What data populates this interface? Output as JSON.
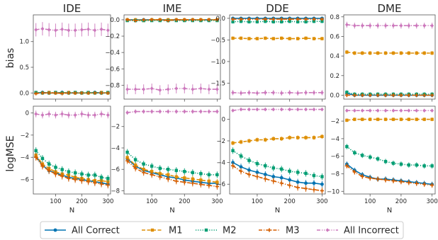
{
  "figure": {
    "row_labels": [
      "bias",
      "logMSE"
    ],
    "xlabel": "N"
  },
  "legend": [
    {
      "name": "All Correct",
      "color": "#0173b2",
      "marker": "circle",
      "dash": "solid"
    },
    {
      "name": "M1",
      "color": "#de8f05",
      "marker": "square",
      "dash": "dashed"
    },
    {
      "name": "M2",
      "color": "#029e73",
      "marker": "square",
      "dash": "dotted"
    },
    {
      "name": "M3",
      "color": "#d55e00",
      "marker": "plus",
      "dash": "dashdot"
    },
    {
      "name": "All Incorrect",
      "color": "#cc78bc",
      "marker": "diamond",
      "dash": "dashdotdot"
    }
  ],
  "chart_data": [
    {
      "type": "line",
      "title": "IDE",
      "row": 0,
      "col": 0,
      "xlabel": "",
      "ylabel": "bias",
      "x": [
        25,
        50,
        75,
        100,
        125,
        150,
        175,
        200,
        225,
        250,
        275,
        300
      ],
      "xlim": [
        15,
        310
      ],
      "ylim": [
        -0.12,
        1.52
      ],
      "yticks": [
        0.0,
        0.5,
        1.0
      ],
      "ytick_labels": [
        "0.0",
        "0.5",
        "1.0"
      ],
      "xticks": [
        100,
        200,
        300
      ],
      "show_xtick_labels": false,
      "series": [
        {
          "name": "All Correct",
          "values": [
            0.0,
            0.01,
            0.0,
            0.0,
            0.01,
            0.0,
            0.0,
            0.0,
            0.0,
            0.01,
            0.0,
            0.0
          ],
          "err": 0.03
        },
        {
          "name": "M1",
          "values": [
            0.0,
            0.0,
            0.01,
            0.0,
            0.0,
            0.01,
            0.0,
            0.0,
            0.0,
            0.0,
            0.01,
            0.0
          ],
          "err": 0.03
        },
        {
          "name": "M2",
          "values": [
            0.01,
            0.0,
            0.0,
            0.01,
            0.0,
            0.0,
            0.01,
            0.0,
            0.01,
            0.0,
            0.0,
            0.01
          ],
          "err": 0.03
        },
        {
          "name": "M3",
          "values": [
            -0.01,
            0.0,
            0.0,
            0.0,
            -0.01,
            0.0,
            0.0,
            0.0,
            0.0,
            0.0,
            0.0,
            0.0
          ],
          "err": 0.03
        },
        {
          "name": "All Incorrect",
          "values": [
            1.23,
            1.25,
            1.23,
            1.22,
            1.24,
            1.22,
            1.22,
            1.23,
            1.24,
            1.22,
            1.24,
            1.22
          ],
          "err": 0.13
        }
      ]
    },
    {
      "type": "line",
      "title": "IME",
      "row": 0,
      "col": 1,
      "xlabel": "",
      "ylabel": "",
      "x": [
        25,
        50,
        75,
        100,
        125,
        150,
        175,
        200,
        225,
        250,
        275,
        300
      ],
      "xlim": [
        15,
        310
      ],
      "ylim": [
        -0.97,
        0.06
      ],
      "yticks": [
        0.0,
        -0.2,
        -0.4,
        -0.6,
        -0.8
      ],
      "ytick_labels": [
        "0.0",
        "−0.2",
        "−0.4",
        "−0.6",
        "−0.8"
      ],
      "xticks": [
        100,
        200,
        300
      ],
      "show_xtick_labels": false,
      "series": [
        {
          "name": "All Correct",
          "values": [
            0.0,
            0.0,
            0.0,
            0.0,
            0.0,
            0.0,
            0.0,
            0.0,
            0.0,
            0.0,
            0.0,
            0.0
          ],
          "err": 0.01
        },
        {
          "name": "M1",
          "values": [
            0.0,
            0.0,
            -0.01,
            0.0,
            0.0,
            0.0,
            0.0,
            0.0,
            0.0,
            0.0,
            0.0,
            0.0
          ],
          "err": 0.01
        },
        {
          "name": "M2",
          "values": [
            -0.01,
            -0.01,
            -0.01,
            -0.01,
            -0.01,
            -0.01,
            -0.01,
            -0.01,
            -0.01,
            -0.01,
            -0.01,
            -0.01
          ],
          "err": 0.01
        },
        {
          "name": "M3",
          "values": [
            0.0,
            -0.01,
            0.0,
            0.0,
            0.0,
            -0.01,
            0.0,
            0.0,
            0.0,
            0.0,
            0.0,
            0.0
          ],
          "err": 0.01
        },
        {
          "name": "All Incorrect",
          "values": [
            -0.85,
            -0.85,
            -0.85,
            -0.84,
            -0.86,
            -0.85,
            -0.84,
            -0.84,
            -0.85,
            -0.84,
            -0.85,
            -0.85
          ],
          "err": 0.06
        }
      ]
    },
    {
      "type": "line",
      "title": "DDE",
      "row": 0,
      "col": 2,
      "xlabel": "",
      "ylabel": "",
      "x": [
        25,
        50,
        75,
        100,
        125,
        150,
        175,
        200,
        225,
        250,
        275,
        300
      ],
      "xlim": [
        15,
        310
      ],
      "ylim": [
        -1.87,
        0.08
      ],
      "yticks": [
        0.0,
        -0.5,
        -1.0,
        -1.5
      ],
      "ytick_labels": [
        "0.0",
        "−0.5",
        "−1.0",
        "−1.5"
      ],
      "xticks": [
        100,
        200,
        300
      ],
      "show_xtick_labels": false,
      "series": [
        {
          "name": "All Correct",
          "values": [
            0.0,
            0.0,
            0.0,
            0.0,
            0.0,
            0.0,
            0.0,
            0.0,
            0.0,
            0.0,
            0.0,
            0.0
          ],
          "err": 0.03
        },
        {
          "name": "M1",
          "values": [
            -0.46,
            -0.46,
            -0.47,
            -0.47,
            -0.46,
            -0.47,
            -0.46,
            -0.47,
            -0.47,
            -0.46,
            -0.47,
            -0.47
          ],
          "err": 0.04
        },
        {
          "name": "M2",
          "values": [
            -0.08,
            -0.07,
            -0.08,
            -0.08,
            -0.07,
            -0.08,
            -0.08,
            -0.07,
            -0.08,
            -0.08,
            -0.07,
            -0.07
          ],
          "err": 0.04
        },
        {
          "name": "M3",
          "values": [
            -0.02,
            -0.02,
            -0.02,
            -0.02,
            -0.02,
            -0.02,
            -0.02,
            -0.02,
            -0.02,
            -0.02,
            -0.02,
            -0.02
          ],
          "err": 0.03
        },
        {
          "name": "All Incorrect",
          "values": [
            -1.72,
            -1.73,
            -1.72,
            -1.73,
            -1.72,
            -1.72,
            -1.73,
            -1.72,
            -1.73,
            -1.72,
            -1.72,
            -1.72
          ],
          "err": 0.06
        }
      ]
    },
    {
      "type": "line",
      "title": "DME",
      "row": 0,
      "col": 3,
      "xlabel": "",
      "ylabel": "",
      "x": [
        25,
        50,
        75,
        100,
        125,
        150,
        175,
        200,
        225,
        250,
        275,
        300
      ],
      "xlim": [
        15,
        310
      ],
      "ylim": [
        -0.04,
        0.82
      ],
      "yticks": [
        0.0,
        0.2,
        0.4,
        0.6,
        0.8
      ],
      "ytick_labels": [
        "0.0",
        "0.2",
        "0.4",
        "0.6",
        "0.8"
      ],
      "xticks": [
        100,
        200,
        300
      ],
      "show_xtick_labels": false,
      "series": [
        {
          "name": "All Correct",
          "values": [
            0.02,
            0.0,
            0.0,
            0.0,
            0.0,
            0.0,
            0.0,
            0.0,
            0.0,
            0.0,
            0.0,
            0.0
          ],
          "err": 0.02
        },
        {
          "name": "M1",
          "values": [
            0.44,
            0.43,
            0.43,
            0.43,
            0.43,
            0.43,
            0.43,
            0.43,
            0.43,
            0.43,
            0.43,
            0.43
          ],
          "err": 0.02
        },
        {
          "name": "M2",
          "values": [
            0.03,
            0.01,
            0.01,
            0.01,
            0.01,
            0.01,
            0.01,
            0.01,
            0.01,
            0.01,
            0.01,
            0.01
          ],
          "err": 0.02
        },
        {
          "name": "M3",
          "values": [
            0.0,
            0.0,
            0.0,
            0.0,
            0.0,
            0.0,
            0.0,
            0.0,
            0.0,
            0.0,
            0.0,
            0.0
          ],
          "err": 0.02
        },
        {
          "name": "All Incorrect",
          "values": [
            0.72,
            0.71,
            0.71,
            0.71,
            0.71,
            0.71,
            0.71,
            0.71,
            0.71,
            0.71,
            0.71,
            0.71
          ],
          "err": 0.03
        }
      ]
    },
    {
      "type": "line",
      "title": "",
      "row": 1,
      "col": 0,
      "xlabel": "N",
      "ylabel": "logMSE",
      "x": [
        25,
        50,
        75,
        100,
        125,
        150,
        175,
        200,
        225,
        250,
        275,
        300
      ],
      "xlim": [
        15,
        310
      ],
      "ylim": [
        -7.3,
        0.6
      ],
      "yticks": [
        0,
        -2,
        -4,
        -6
      ],
      "ytick_labels": [
        "0",
        "−2",
        "−4",
        "−6"
      ],
      "xticks": [
        100,
        200,
        300
      ],
      "xtick_labels": [
        "100",
        "200",
        "300"
      ],
      "show_xtick_labels": true,
      "series": [
        {
          "name": "All Correct",
          "values": [
            -3.9,
            -4.7,
            -5.2,
            -5.4,
            -5.6,
            -5.8,
            -5.9,
            -6.0,
            -6.1,
            -6.2,
            -6.3,
            -6.4
          ],
          "err": 0.3
        },
        {
          "name": "M1",
          "values": [
            -3.8,
            -4.6,
            -5.0,
            -5.3,
            -5.5,
            -5.6,
            -5.8,
            -5.9,
            -6.0,
            -6.1,
            -6.1,
            -6.2
          ],
          "err": 0.3
        },
        {
          "name": "M2",
          "values": [
            -3.4,
            -4.1,
            -4.6,
            -4.9,
            -5.1,
            -5.3,
            -5.4,
            -5.5,
            -5.6,
            -5.6,
            -5.8,
            -5.9
          ],
          "err": 0.3
        },
        {
          "name": "M3",
          "values": [
            -4.0,
            -4.8,
            -5.2,
            -5.5,
            -5.7,
            -5.9,
            -6.0,
            -6.1,
            -6.2,
            -6.3,
            -6.4,
            -6.5
          ],
          "err": 0.3
        },
        {
          "name": "All Incorrect",
          "values": [
            -0.1,
            -0.2,
            -0.1,
            -0.2,
            -0.1,
            -0.2,
            -0.2,
            -0.1,
            -0.2,
            -0.2,
            -0.1,
            -0.2
          ],
          "err": 0.3
        }
      ]
    },
    {
      "type": "line",
      "title": "",
      "row": 1,
      "col": 1,
      "xlabel": "N",
      "ylabel": "",
      "x": [
        25,
        50,
        75,
        100,
        125,
        150,
        175,
        200,
        225,
        250,
        275,
        300
      ],
      "xlim": [
        15,
        310
      ],
      "ylim": [
        -8.3,
        -0.1
      ],
      "yticks": [
        -2,
        -4,
        -6,
        -8
      ],
      "ytick_labels": [
        "−2",
        "−4",
        "−6",
        "−8"
      ],
      "xticks": [
        100,
        200,
        300
      ],
      "xtick_labels": [
        "100",
        "200",
        "300"
      ],
      "show_xtick_labels": true,
      "series": [
        {
          "name": "All Correct",
          "values": [
            -5.0,
            -5.7,
            -6.1,
            -6.3,
            -6.5,
            -6.7,
            -6.8,
            -7.0,
            -7.1,
            -7.2,
            -7.3,
            -7.3
          ],
          "err": 0.3
        },
        {
          "name": "M1",
          "values": [
            -4.9,
            -5.6,
            -6.0,
            -6.2,
            -6.4,
            -6.5,
            -6.7,
            -6.8,
            -6.9,
            -7.0,
            -7.1,
            -7.2
          ],
          "err": 0.3
        },
        {
          "name": "M2",
          "values": [
            -4.4,
            -5.1,
            -5.5,
            -5.7,
            -5.9,
            -6.0,
            -6.1,
            -6.2,
            -6.3,
            -6.4,
            -6.5,
            -6.5
          ],
          "err": 0.3
        },
        {
          "name": "M3",
          "values": [
            -5.2,
            -5.9,
            -6.3,
            -6.5,
            -6.7,
            -6.9,
            -7.1,
            -7.2,
            -7.3,
            -7.4,
            -7.5,
            -7.6
          ],
          "err": 0.3
        },
        {
          "name": "All Incorrect",
          "values": [
            -0.7,
            -0.6,
            -0.6,
            -0.6,
            -0.6,
            -0.6,
            -0.6,
            -0.6,
            -0.6,
            -0.6,
            -0.6,
            -0.6
          ],
          "err": 0.2
        }
      ]
    },
    {
      "type": "line",
      "title": "",
      "row": 1,
      "col": 2,
      "xlabel": "N",
      "ylabel": "",
      "x": [
        25,
        50,
        75,
        100,
        125,
        150,
        175,
        200,
        225,
        250,
        275,
        300
      ],
      "xlim": [
        15,
        310
      ],
      "ylim": [
        -6.9,
        1.2
      ],
      "yticks": [
        0,
        -2,
        -4,
        -6
      ],
      "ytick_labels": [
        "0",
        "−2",
        "−4",
        "−6"
      ],
      "xticks": [
        100,
        200,
        300
      ],
      "xtick_labels": [
        "100",
        "200",
        "300"
      ],
      "show_xtick_labels": true,
      "series": [
        {
          "name": "All Correct",
          "values": [
            -4.0,
            -4.4,
            -4.7,
            -4.9,
            -5.1,
            -5.3,
            -5.4,
            -5.6,
            -5.8,
            -5.9,
            -5.9,
            -6.0
          ],
          "err": 0.3
        },
        {
          "name": "M1",
          "values": [
            -2.2,
            -2.1,
            -2.0,
            -1.9,
            -1.9,
            -1.8,
            -1.8,
            -1.7,
            -1.7,
            -1.7,
            -1.7,
            -1.6
          ],
          "err": 0.2
        },
        {
          "name": "M2",
          "values": [
            -2.9,
            -3.4,
            -3.8,
            -4.1,
            -4.3,
            -4.5,
            -4.6,
            -4.8,
            -4.9,
            -5.0,
            -5.2,
            -5.3
          ],
          "err": 0.3
        },
        {
          "name": "M3",
          "values": [
            -4.3,
            -4.8,
            -5.1,
            -5.3,
            -5.5,
            -5.7,
            -5.9,
            -6.1,
            -6.3,
            -6.4,
            -6.5,
            -6.6
          ],
          "err": 0.3
        },
        {
          "name": "All Incorrect",
          "values": [
            0.8,
            0.9,
            0.9,
            0.9,
            0.9,
            0.9,
            0.9,
            0.9,
            0.9,
            0.9,
            0.9,
            0.9
          ],
          "err": 0.1
        }
      ]
    },
    {
      "type": "line",
      "title": "",
      "row": 1,
      "col": 3,
      "xlabel": "N",
      "ylabel": "",
      "x": [
        25,
        50,
        75,
        100,
        125,
        150,
        175,
        200,
        225,
        250,
        275,
        300
      ],
      "xlim": [
        15,
        310
      ],
      "ylim": [
        -10.3,
        -0.3
      ],
      "yticks": [
        -2,
        -4,
        -6,
        -8,
        -10
      ],
      "ytick_labels": [
        "−2",
        "−4",
        "−6",
        "−8",
        "−10"
      ],
      "xticks": [
        100,
        200,
        300
      ],
      "xtick_labels": [
        "100",
        "200",
        "300"
      ],
      "show_xtick_labels": true,
      "series": [
        {
          "name": "All Correct",
          "values": [
            -6.9,
            -7.6,
            -8.1,
            -8.4,
            -8.6,
            -8.6,
            -8.7,
            -8.8,
            -8.9,
            -9.0,
            -9.1,
            -9.2
          ],
          "err": 0.3
        },
        {
          "name": "M1",
          "values": [
            -1.9,
            -1.8,
            -1.8,
            -1.8,
            -1.8,
            -1.8,
            -1.8,
            -1.8,
            -1.8,
            -1.8,
            -1.8,
            -1.8
          ],
          "err": 0.2
        },
        {
          "name": "M2",
          "values": [
            -4.9,
            -5.6,
            -5.9,
            -6.1,
            -6.3,
            -6.6,
            -6.8,
            -6.9,
            -7.0,
            -7.0,
            -7.1,
            -7.1
          ],
          "err": 0.3
        },
        {
          "name": "M3",
          "values": [
            -7.1,
            -7.8,
            -8.3,
            -8.5,
            -8.6,
            -8.7,
            -8.8,
            -8.9,
            -9.0,
            -9.1,
            -9.2,
            -9.3
          ],
          "err": 0.3
        },
        {
          "name": "All Incorrect",
          "values": [
            -0.8,
            -0.8,
            -0.8,
            -0.8,
            -0.8,
            -0.8,
            -0.8,
            -0.8,
            -0.8,
            -0.8,
            -0.8,
            -0.8
          ],
          "err": 0.1
        }
      ]
    }
  ]
}
